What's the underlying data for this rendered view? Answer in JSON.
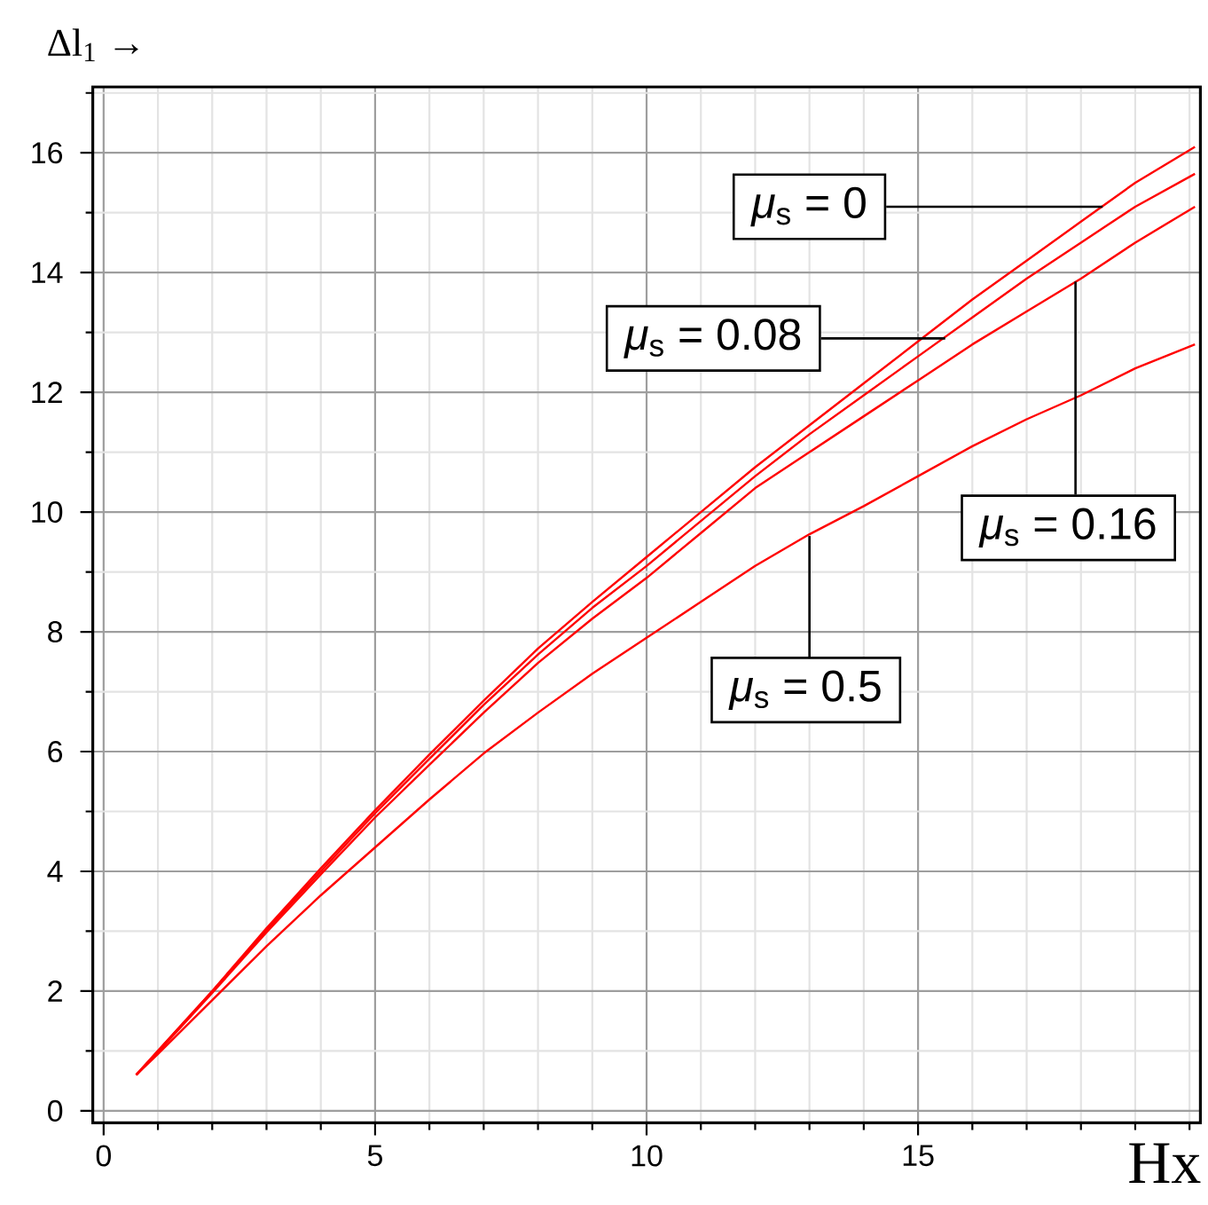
{
  "chart_data": {
    "type": "line",
    "xlabel": "Hx",
    "ylabel": "Δl$_{1}$ →",
    "x": [
      0.6,
      1,
      2,
      3,
      4,
      5,
      6,
      7,
      8,
      9,
      10,
      11,
      12,
      13,
      14,
      15,
      16,
      17,
      18,
      19,
      20.1
    ],
    "series": [
      {
        "color": "#ff0000",
        "values": [
          0.6,
          1.0,
          2.0,
          3.05,
          4.05,
          5.02,
          5.95,
          6.85,
          7.72,
          8.5,
          9.25,
          10.0,
          10.75,
          11.45,
          12.15,
          12.85,
          13.55,
          14.2,
          14.85,
          15.5,
          16.1
        ]
      },
      {
        "color": "#ff0000",
        "values": [
          0.6,
          1.0,
          2.0,
          3.02,
          4.0,
          4.97,
          5.88,
          6.78,
          7.62,
          8.4,
          9.1,
          9.85,
          10.6,
          11.3,
          11.95,
          12.6,
          13.25,
          13.9,
          14.5,
          15.1,
          15.65
        ]
      },
      {
        "color": "#ff0000",
        "values": [
          0.6,
          0.98,
          1.97,
          2.98,
          3.95,
          4.9,
          5.78,
          6.65,
          7.48,
          8.22,
          8.9,
          9.65,
          10.4,
          11.0,
          11.6,
          12.2,
          12.8,
          13.35,
          13.9,
          14.5,
          15.1
        ]
      },
      {
        "color": "#ff0000",
        "values": [
          0.6,
          0.95,
          1.85,
          2.75,
          3.6,
          4.4,
          5.2,
          5.97,
          6.65,
          7.3,
          7.9,
          8.5,
          9.1,
          9.63,
          10.1,
          10.6,
          11.1,
          11.55,
          11.95,
          12.4,
          12.8
        ]
      }
    ],
    "annotations": [
      {
        "text": "*μ*$_{s}$ = 0",
        "x": 18.4,
        "y": 15.1
      },
      {
        "text": "*μ*$_{s}$ = 0.08",
        "x": 15.5,
        "y": 12.9
      },
      {
        "text": "*μ*$_{s}$ = 0.16",
        "x": 17.9,
        "y": 13.85
      },
      {
        "text": "*μ*$_{s}$ = 0.5",
        "x": 13,
        "y": 9.6
      }
    ],
    "xlim": [
      -0.2,
      20.2
    ],
    "ylim": [
      -0.2,
      17.1
    ],
    "xticks": [
      0,
      {
        "value": 1,
        "label": null
      },
      {
        "value": 2,
        "label": null
      },
      {
        "value": 3,
        "label": null
      },
      {
        "value": 4,
        "label": null
      },
      5,
      {
        "value": 6,
        "label": null
      },
      {
        "value": 7,
        "label": null
      },
      {
        "value": 8,
        "label": null
      },
      {
        "value": 9,
        "label": null
      },
      10,
      {
        "value": 11,
        "label": null
      },
      {
        "value": 12,
        "label": null
      },
      {
        "value": 13,
        "label": null
      },
      {
        "value": 14,
        "label": null
      },
      15,
      {
        "value": 16,
        "label": null
      },
      {
        "value": 17,
        "label": null
      },
      {
        "value": 18,
        "label": null
      },
      {
        "value": 19,
        "label": null
      },
      {
        "value": 20,
        "label": null
      }
    ],
    "yticks": [
      0,
      {
        "value": 1,
        "label": null
      },
      2,
      {
        "value": 3,
        "label": null
      },
      4,
      {
        "value": 5,
        "label": null
      },
      6,
      {
        "value": 7,
        "label": null
      },
      8,
      {
        "value": 9,
        "label": null
      },
      10,
      {
        "value": 11,
        "label": null
      },
      12,
      {
        "value": 13,
        "label": null
      },
      14,
      {
        "value": 15,
        "label": null
      },
      16,
      {
        "value": 17,
        "label": null
      }
    ],
    "grid": true
  }
}
